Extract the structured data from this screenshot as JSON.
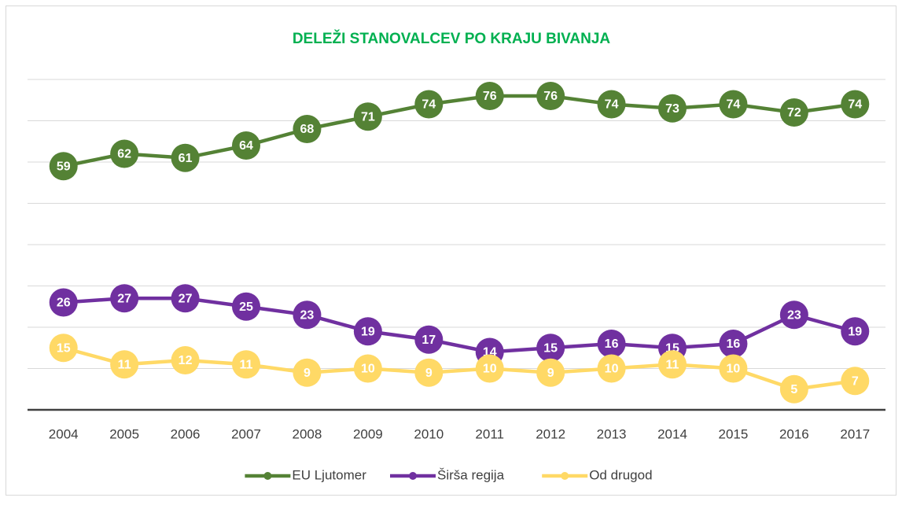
{
  "chart_data": {
    "type": "line",
    "title": "DELEŽI STANOVALCEV PO KRAJU BIVANJA",
    "categories": [
      "2004",
      "2005",
      "2006",
      "2007",
      "2008",
      "2009",
      "2010",
      "2011",
      "2012",
      "2013",
      "2014",
      "2015",
      "2016",
      "2017"
    ],
    "series": [
      {
        "name": "EU Ljutomer",
        "color": "#548235",
        "values": [
          59,
          62,
          61,
          64,
          68,
          71,
          74,
          76,
          76,
          74,
          73,
          74,
          72,
          74
        ]
      },
      {
        "name": "Širša regija",
        "color": "#7030a0",
        "values": [
          26,
          27,
          27,
          25,
          23,
          19,
          17,
          14,
          15,
          16,
          15,
          16,
          23,
          19
        ]
      },
      {
        "name": "Od drugod",
        "color": "#ffd966",
        "values": [
          15,
          11,
          12,
          11,
          9,
          10,
          9,
          10,
          9,
          10,
          11,
          10,
          5,
          7
        ]
      }
    ],
    "ylim": [
      0,
      80
    ],
    "yticks": [
      0,
      10,
      20,
      30,
      40,
      50,
      60,
      70,
      80
    ],
    "grid": true,
    "legend": "bottom"
  }
}
